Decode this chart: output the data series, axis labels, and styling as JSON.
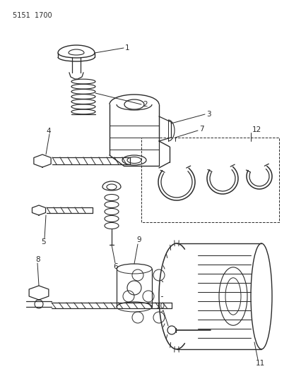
{
  "title_code": "5151 1700",
  "bg": "#ffffff",
  "lc": "#2a2a2a",
  "fig_w": 4.1,
  "fig_h": 5.33,
  "dpi": 100
}
